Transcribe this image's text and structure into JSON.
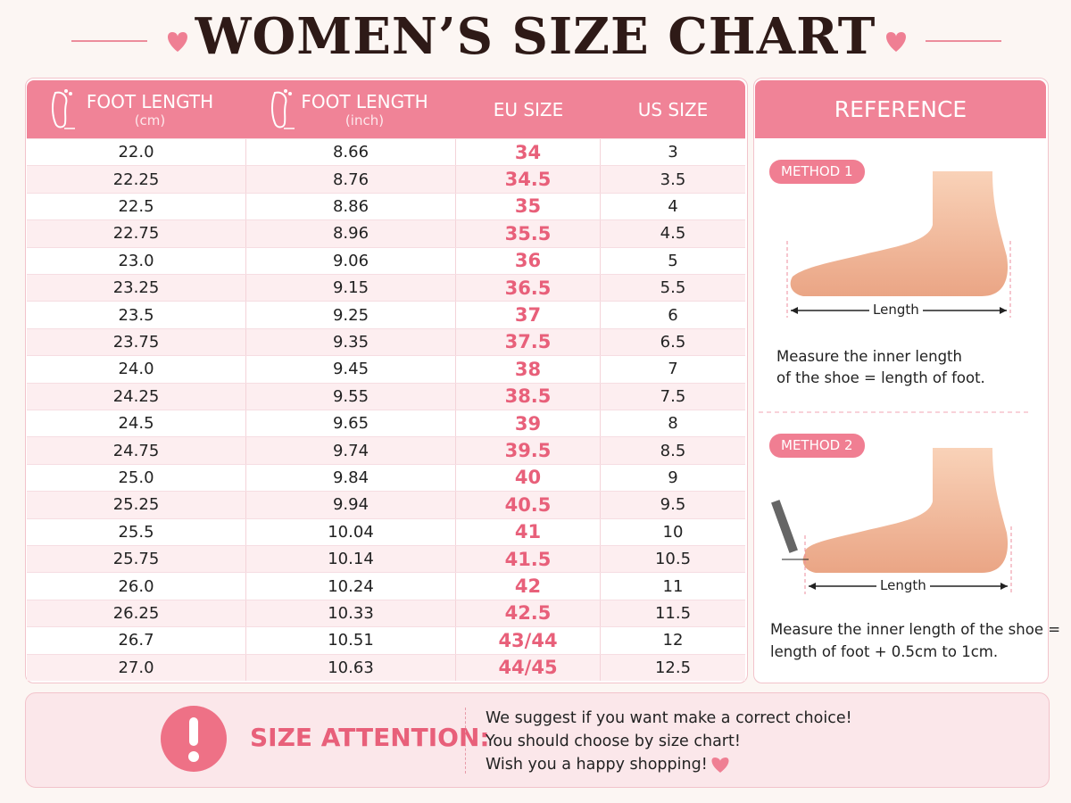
{
  "title": "WOMEN’S SIZE CHART",
  "table": {
    "headers": [
      {
        "label": "FOOT LENGTH",
        "unit": "(cm)"
      },
      {
        "label": "FOOT LENGTH",
        "unit": "(inch)"
      },
      {
        "label": "EU SIZE"
      },
      {
        "label": "US SIZE"
      }
    ],
    "rows": [
      [
        "22.0",
        "8.66",
        "34",
        "3"
      ],
      [
        "22.25",
        "8.76",
        "34.5",
        "3.5"
      ],
      [
        "22.5",
        "8.86",
        "35",
        "4"
      ],
      [
        "22.75",
        "8.96",
        "35.5",
        "4.5"
      ],
      [
        "23.0",
        "9.06",
        "36",
        "5"
      ],
      [
        "23.25",
        "9.15",
        "36.5",
        "5.5"
      ],
      [
        "23.5",
        "9.25",
        "37",
        "6"
      ],
      [
        "23.75",
        "9.35",
        "37.5",
        "6.5"
      ],
      [
        "24.0",
        "9.45",
        "38",
        "7"
      ],
      [
        "24.25",
        "9.55",
        "38.5",
        "7.5"
      ],
      [
        "24.5",
        "9.65",
        "39",
        "8"
      ],
      [
        "24.75",
        "9.74",
        "39.5",
        "8.5"
      ],
      [
        "25.0",
        "9.84",
        "40",
        "9"
      ],
      [
        "25.25",
        "9.94",
        "40.5",
        "9.5"
      ],
      [
        "25.5",
        "10.04",
        "41",
        "10"
      ],
      [
        "25.75",
        "10.14",
        "41.5",
        "10.5"
      ],
      [
        "26.0",
        "10.24",
        "42",
        "11"
      ],
      [
        "26.25",
        "10.33",
        "42.5",
        "11.5"
      ],
      [
        "26.7",
        "10.51",
        "43/44",
        "12"
      ],
      [
        "27.0",
        "10.63",
        "44/45",
        "12.5"
      ]
    ]
  },
  "reference": {
    "title": "REFERENCE",
    "methods": [
      {
        "badge": "METHOD 1",
        "dimension": "Length",
        "note": [
          "Measure the inner length",
          "of the shoe = length of foot."
        ]
      },
      {
        "badge": "METHOD 2",
        "dimension": "Length",
        "note": [
          "Measure the inner length of the shoe =",
          "length of foot + 0.5cm to 1cm."
        ]
      }
    ]
  },
  "attention": {
    "title": "SIZE ATTENTION:",
    "lines": [
      "We suggest if you want make a correct choice!",
      "You should choose by size chart!",
      "Wish you a happy shopping!"
    ]
  }
}
